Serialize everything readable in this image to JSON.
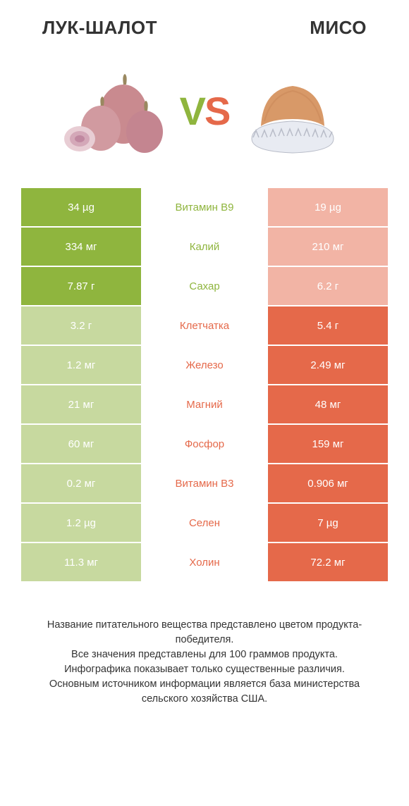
{
  "colors": {
    "left": "#8fb53e",
    "right": "#e5694a",
    "leftDim": "#c7d99f",
    "rightDim": "#f2b4a5",
    "text": "#333333"
  },
  "header": {
    "leftTitle": "ЛУК-ШАЛОТ",
    "rightTitle": "МИСО",
    "vsV": "V",
    "vsS": "S"
  },
  "rows": [
    {
      "left": "34 µg",
      "mid": "Витамин B9",
      "right": "19 µg",
      "winner": "left"
    },
    {
      "left": "334 мг",
      "mid": "Калий",
      "right": "210 мг",
      "winner": "left"
    },
    {
      "left": "7.87 г",
      "mid": "Сахар",
      "right": "6.2 г",
      "winner": "left"
    },
    {
      "left": "3.2 г",
      "mid": "Клетчатка",
      "right": "5.4 г",
      "winner": "right"
    },
    {
      "left": "1.2 мг",
      "mid": "Железо",
      "right": "2.49 мг",
      "winner": "right"
    },
    {
      "left": "21 мг",
      "mid": "Магний",
      "right": "48 мг",
      "winner": "right"
    },
    {
      "left": "60 мг",
      "mid": "Фосфор",
      "right": "159 мг",
      "winner": "right"
    },
    {
      "left": "0.2 мг",
      "mid": "Витамин B3",
      "right": "0.906 мг",
      "winner": "right"
    },
    {
      "left": "1.2 µg",
      "mid": "Селен",
      "right": "7 µg",
      "winner": "right"
    },
    {
      "left": "11.3 мг",
      "mid": "Холин",
      "right": "72.2 мг",
      "winner": "right"
    }
  ],
  "footer": {
    "l1": "Название питательного вещества представлено цветом продукта-победителя.",
    "l2": "Все значения представлены для 100 граммов продукта.",
    "l3": "Инфографика показывает только существенные различия.",
    "l4": "Основным источником информации является база министерства сельского хозяйства США."
  }
}
